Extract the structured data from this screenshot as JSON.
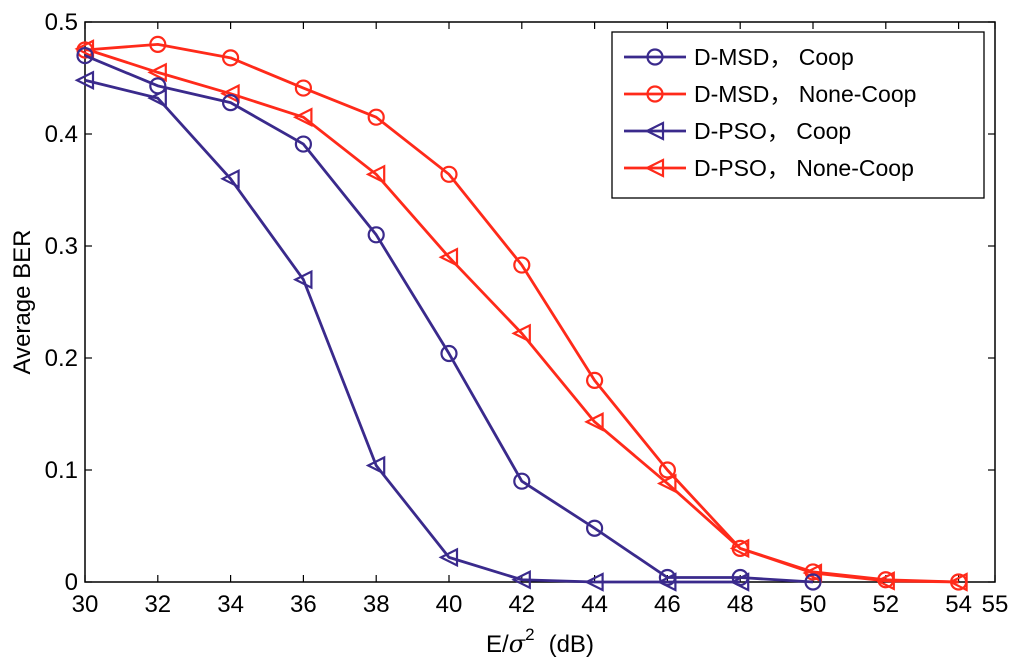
{
  "chart_data": {
    "type": "line",
    "xlabel_main": "E/",
    "xlabel_sigma": "σ",
    "xlabel_sup": "2",
    "xlabel_unit": "(dB)",
    "ylabel": "Average BER",
    "xlim": [
      30,
      55
    ],
    "ylim": [
      0,
      0.5
    ],
    "xticks": [
      "30",
      "32",
      "34",
      "36",
      "38",
      "40",
      "42",
      "44",
      "46",
      "48",
      "50",
      "52",
      "54",
      "55"
    ],
    "yticks": [
      "0",
      "0.1",
      "0.2",
      "0.3",
      "0.4",
      "0.5"
    ],
    "grid": false,
    "legend_position": "top-right",
    "series": [
      {
        "name": "D-MSD， Coop",
        "color": "#3a2a8c",
        "marker": "circle",
        "x": [
          30,
          32,
          34,
          36,
          38,
          40,
          42,
          44,
          46,
          48,
          50
        ],
        "y": [
          0.47,
          0.443,
          0.428,
          0.391,
          0.31,
          0.204,
          0.09,
          0.048,
          0.004,
          0.004,
          0.0
        ]
      },
      {
        "name": "D-MSD， None-Coop",
        "color": "#ff2a1a",
        "marker": "circle",
        "x": [
          30,
          32,
          34,
          36,
          38,
          40,
          42,
          44,
          46,
          48,
          50,
          52,
          54
        ],
        "y": [
          0.475,
          0.48,
          0.468,
          0.441,
          0.415,
          0.364,
          0.283,
          0.18,
          0.1,
          0.03,
          0.009,
          0.002,
          0.0
        ]
      },
      {
        "name": "D-PSO， Coop",
        "color": "#3a2a8c",
        "marker": "triangle-left",
        "x": [
          30,
          32,
          34,
          36,
          38,
          40,
          42,
          44,
          46,
          48
        ],
        "y": [
          0.448,
          0.432,
          0.36,
          0.27,
          0.104,
          0.022,
          0.002,
          0.0,
          0.0,
          0.0
        ]
      },
      {
        "name": "D-PSO， None-Coop",
        "color": "#ff2a1a",
        "marker": "triangle-left",
        "x": [
          30,
          32,
          34,
          36,
          38,
          40,
          42,
          44,
          46,
          48,
          50,
          52,
          54
        ],
        "y": [
          0.476,
          0.455,
          0.436,
          0.415,
          0.364,
          0.29,
          0.222,
          0.143,
          0.088,
          0.03,
          0.008,
          0.001,
          0.0
        ]
      }
    ]
  }
}
